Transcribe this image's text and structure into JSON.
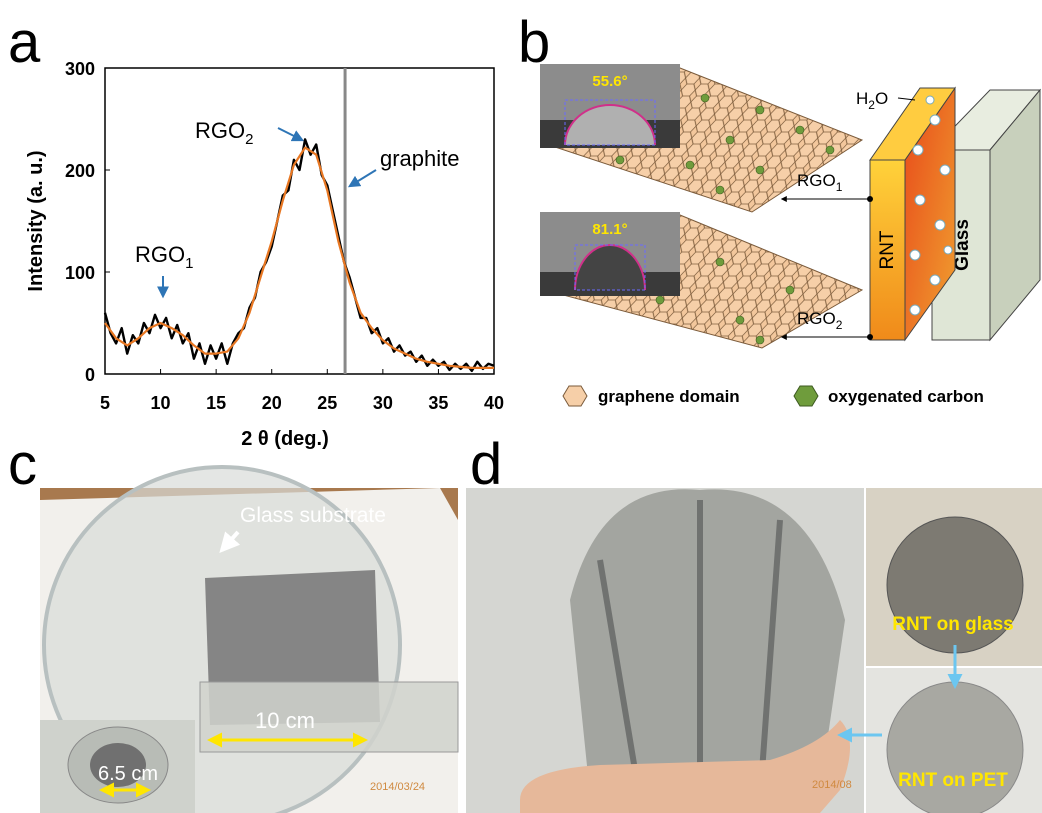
{
  "panel_labels": [
    "a",
    "b",
    "c",
    "d"
  ],
  "chart_data": {
    "type": "line",
    "x_label": "2 θ (deg.)",
    "y_label": "Intensity (a. u.)",
    "xlim": [
      5,
      40
    ],
    "xticks": [
      5,
      10,
      15,
      20,
      25,
      30,
      35,
      40
    ],
    "ylim": [
      0,
      300
    ],
    "yticks": [
      0,
      100,
      200,
      300
    ],
    "series": [
      {
        "color": "#000000",
        "x": [
          5,
          5.5,
          6,
          6.5,
          7,
          7.5,
          8,
          8.5,
          9,
          9.5,
          10,
          10.5,
          11,
          11.5,
          12,
          12.5,
          13,
          13.5,
          14,
          14.5,
          15,
          15.5,
          16,
          16.5,
          17,
          17.5,
          18,
          18.5,
          19,
          19.5,
          20,
          20.5,
          21,
          21.5,
          22,
          22.5,
          23,
          23.5,
          24,
          24.5,
          25,
          25.5,
          26,
          26.5,
          27,
          27.5,
          28,
          28.5,
          29,
          29.5,
          30,
          30.5,
          31,
          31.5,
          32,
          32.5,
          33,
          33.5,
          34,
          34.5,
          35,
          35.5,
          36,
          36.5,
          37,
          37.5,
          38,
          38.5,
          39,
          39.5,
          40
        ],
        "values": [
          60,
          40,
          30,
          45,
          20,
          38,
          30,
          50,
          40,
          58,
          45,
          55,
          35,
          48,
          30,
          40,
          15,
          30,
          10,
          28,
          15,
          30,
          10,
          30,
          40,
          45,
          65,
          75,
          100,
          110,
          125,
          150,
          175,
          180,
          210,
          200,
          230,
          215,
          225,
          195,
          185,
          160,
          135,
          110,
          95,
          75,
          55,
          55,
          40,
          45,
          30,
          35,
          22,
          28,
          18,
          22,
          12,
          18,
          8,
          14,
          8,
          12,
          4,
          10,
          5,
          10,
          3,
          12,
          5,
          10,
          8
        ]
      },
      {
        "color": "#e87722",
        "x": [
          5,
          6,
          7,
          8,
          9,
          10,
          11,
          12,
          13,
          14,
          15,
          16,
          17,
          18,
          19,
          20,
          21,
          22,
          23,
          24,
          25,
          26,
          27,
          28,
          29,
          30,
          31,
          32,
          33,
          34,
          35,
          36,
          37,
          38,
          39,
          40
        ],
        "values": [
          50,
          35,
          28,
          35,
          45,
          50,
          45,
          38,
          28,
          20,
          20,
          22,
          35,
          60,
          95,
          130,
          170,
          205,
          222,
          215,
          180,
          130,
          90,
          60,
          45,
          33,
          25,
          20,
          15,
          12,
          10,
          8,
          7,
          6,
          6,
          6
        ]
      }
    ],
    "markers": [
      {
        "x": 26.6,
        "color": "#888888"
      }
    ],
    "annotations": [
      {
        "text": "RGO",
        "sub": "1"
      },
      {
        "text": "RGO",
        "sub": "2"
      },
      {
        "text": "graphite"
      }
    ]
  },
  "diagram": {
    "angles": [
      "55.6°",
      "81.1°"
    ],
    "layers": [
      {
        "text": "RGO",
        "sub": "1"
      },
      {
        "text": "RGO",
        "sub": "2"
      }
    ],
    "water": {
      "text": "H",
      "sub": "2",
      "tail": "O"
    },
    "rnt": "RNT",
    "glass": "Glass",
    "legend": [
      "graphene domain",
      "oxygenated carbon"
    ]
  },
  "photo_c": {
    "labels": [
      "Glass substrate",
      "10 cm",
      "6.5 cm"
    ],
    "stamp": "2014/03/24"
  },
  "photo_d": {
    "labels": [
      "RNT on glass",
      "RNT on PET"
    ],
    "stamp": "2014/08"
  }
}
